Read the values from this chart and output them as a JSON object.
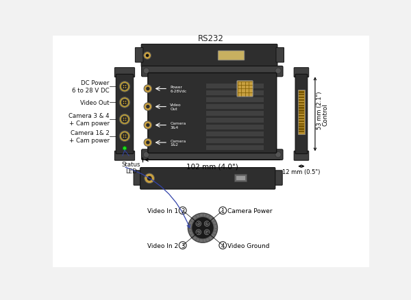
{
  "bg_color": "#f2f2f2",
  "border_color": "#bbbbbb",
  "device_dark": "#2e2e2e",
  "device_medium": "#404040",
  "device_light": "#505050",
  "connector_gold": "#c8a040",
  "connector_silver": "#888888",
  "green_led": "#22dd22",
  "title_rs232": "RS232",
  "title_control": "Control",
  "dim_102": "102 mm (4.0\")",
  "dim_53": "53 mm (2.1\")",
  "dim_12": "12 mm (0.5\")",
  "label_dc": "DC Power\n6 to 28 V DC",
  "label_vidout": "Video Out",
  "label_cam34": "Camera 3 & 4\n+ Cam power",
  "label_cam12": "Camera 1& 2\n+ Cam power",
  "label_status": "Status\nLED",
  "label_power_box": "Power\n6-28Vdc",
  "label_vidout_box": "Video\nOut",
  "label_cam34_box": "Camera\n3&4",
  "label_cam12_box": "Camera\n1&2",
  "label_vin1": "Video In 1",
  "label_vin2": "Video In 2",
  "label_campwr": "Camera Power",
  "label_gnd": "Video Ground",
  "pin1": "1",
  "pin2": "2",
  "pin3": "3",
  "pin4": "4",
  "arrow_color": "#3344aa"
}
